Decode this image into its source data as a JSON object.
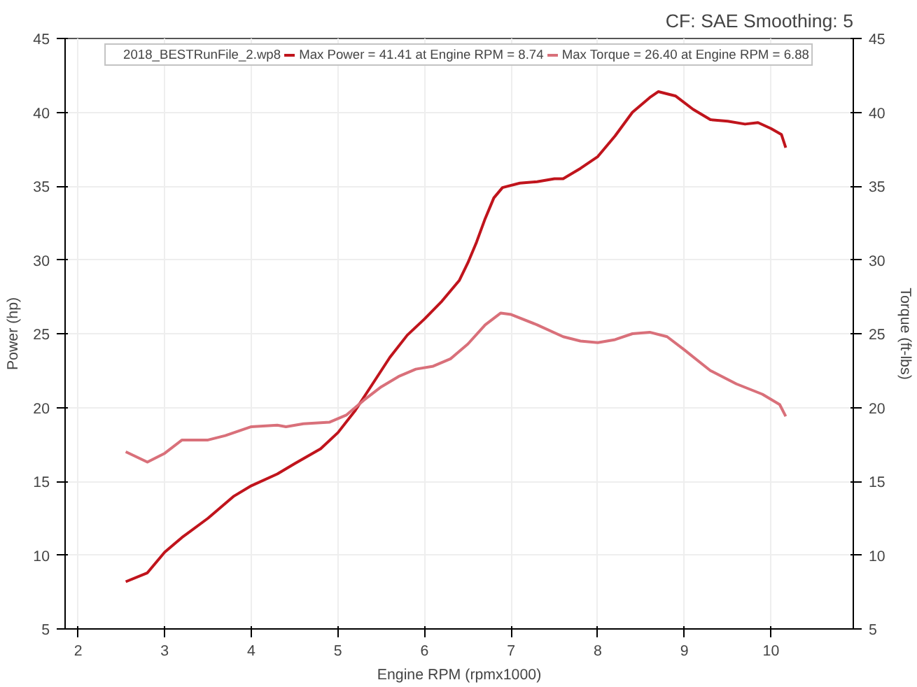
{
  "chart_data": {
    "type": "line",
    "xlabel": "Engine RPM (rpmx1000)",
    "ylabel": "Power (hp)",
    "y2label": "Torque (ft-lbs)",
    "legend_title": "2018_BESTRunFile_2.wp8",
    "annotations": [
      "CF: SAE Smoothing: 5"
    ],
    "xlim": [
      1.85,
      10.95
    ],
    "xticks": [
      2,
      3,
      4,
      5,
      6,
      7,
      8,
      9,
      10
    ],
    "ylim": [
      5,
      45
    ],
    "yticks": [
      5,
      10,
      15,
      20,
      25,
      30,
      35,
      40,
      45
    ],
    "y2lim": [
      5,
      45
    ],
    "y2ticks": [
      5,
      10,
      15,
      20,
      25,
      30,
      35,
      40,
      45
    ],
    "grid": true,
    "legend": "top",
    "line_style": "solid",
    "series": [
      {
        "name": "Max Power = 41.41 at Engine RPM = 8.74",
        "color": "#c0141c",
        "x": [
          2.55,
          2.8,
          3.0,
          3.2,
          3.5,
          3.8,
          4.0,
          4.3,
          4.5,
          4.8,
          5.0,
          5.2,
          5.4,
          5.6,
          5.8,
          6.0,
          6.2,
          6.4,
          6.5,
          6.6,
          6.7,
          6.8,
          6.9,
          7.1,
          7.3,
          7.5,
          7.6,
          7.8,
          8.0,
          8.2,
          8.4,
          8.6,
          8.7,
          8.9,
          9.1,
          9.3,
          9.5,
          9.7,
          9.85,
          10.0,
          10.12,
          10.17
        ],
        "values": [
          8.2,
          8.8,
          10.2,
          11.2,
          12.5,
          14.0,
          14.7,
          15.5,
          16.2,
          17.2,
          18.3,
          19.8,
          21.6,
          23.4,
          24.9,
          26.0,
          27.2,
          28.6,
          29.8,
          31.2,
          32.8,
          34.2,
          34.9,
          35.2,
          35.3,
          35.5,
          35.5,
          36.2,
          37.0,
          38.4,
          40.0,
          41.0,
          41.4,
          41.1,
          40.2,
          39.5,
          39.4,
          39.2,
          39.3,
          38.9,
          38.5,
          37.6
        ]
      },
      {
        "name": "Max Torque = 26.40 at Engine RPM = 6.88",
        "color": "#d9707a",
        "x": [
          2.55,
          2.8,
          3.0,
          3.2,
          3.5,
          3.7,
          4.0,
          4.3,
          4.4,
          4.6,
          4.9,
          5.1,
          5.3,
          5.5,
          5.7,
          5.9,
          6.1,
          6.3,
          6.5,
          6.7,
          6.88,
          7.0,
          7.3,
          7.6,
          7.8,
          8.0,
          8.2,
          8.4,
          8.6,
          8.8,
          9.0,
          9.3,
          9.6,
          9.9,
          10.1,
          10.17
        ],
        "values": [
          17.0,
          16.3,
          16.9,
          17.8,
          17.8,
          18.1,
          18.7,
          18.8,
          18.7,
          18.9,
          19.0,
          19.5,
          20.5,
          21.4,
          22.1,
          22.6,
          22.8,
          23.3,
          24.3,
          25.6,
          26.4,
          26.3,
          25.6,
          24.8,
          24.5,
          24.4,
          24.6,
          25.0,
          25.1,
          24.8,
          23.9,
          22.5,
          21.6,
          20.9,
          20.2,
          19.4
        ]
      }
    ]
  }
}
